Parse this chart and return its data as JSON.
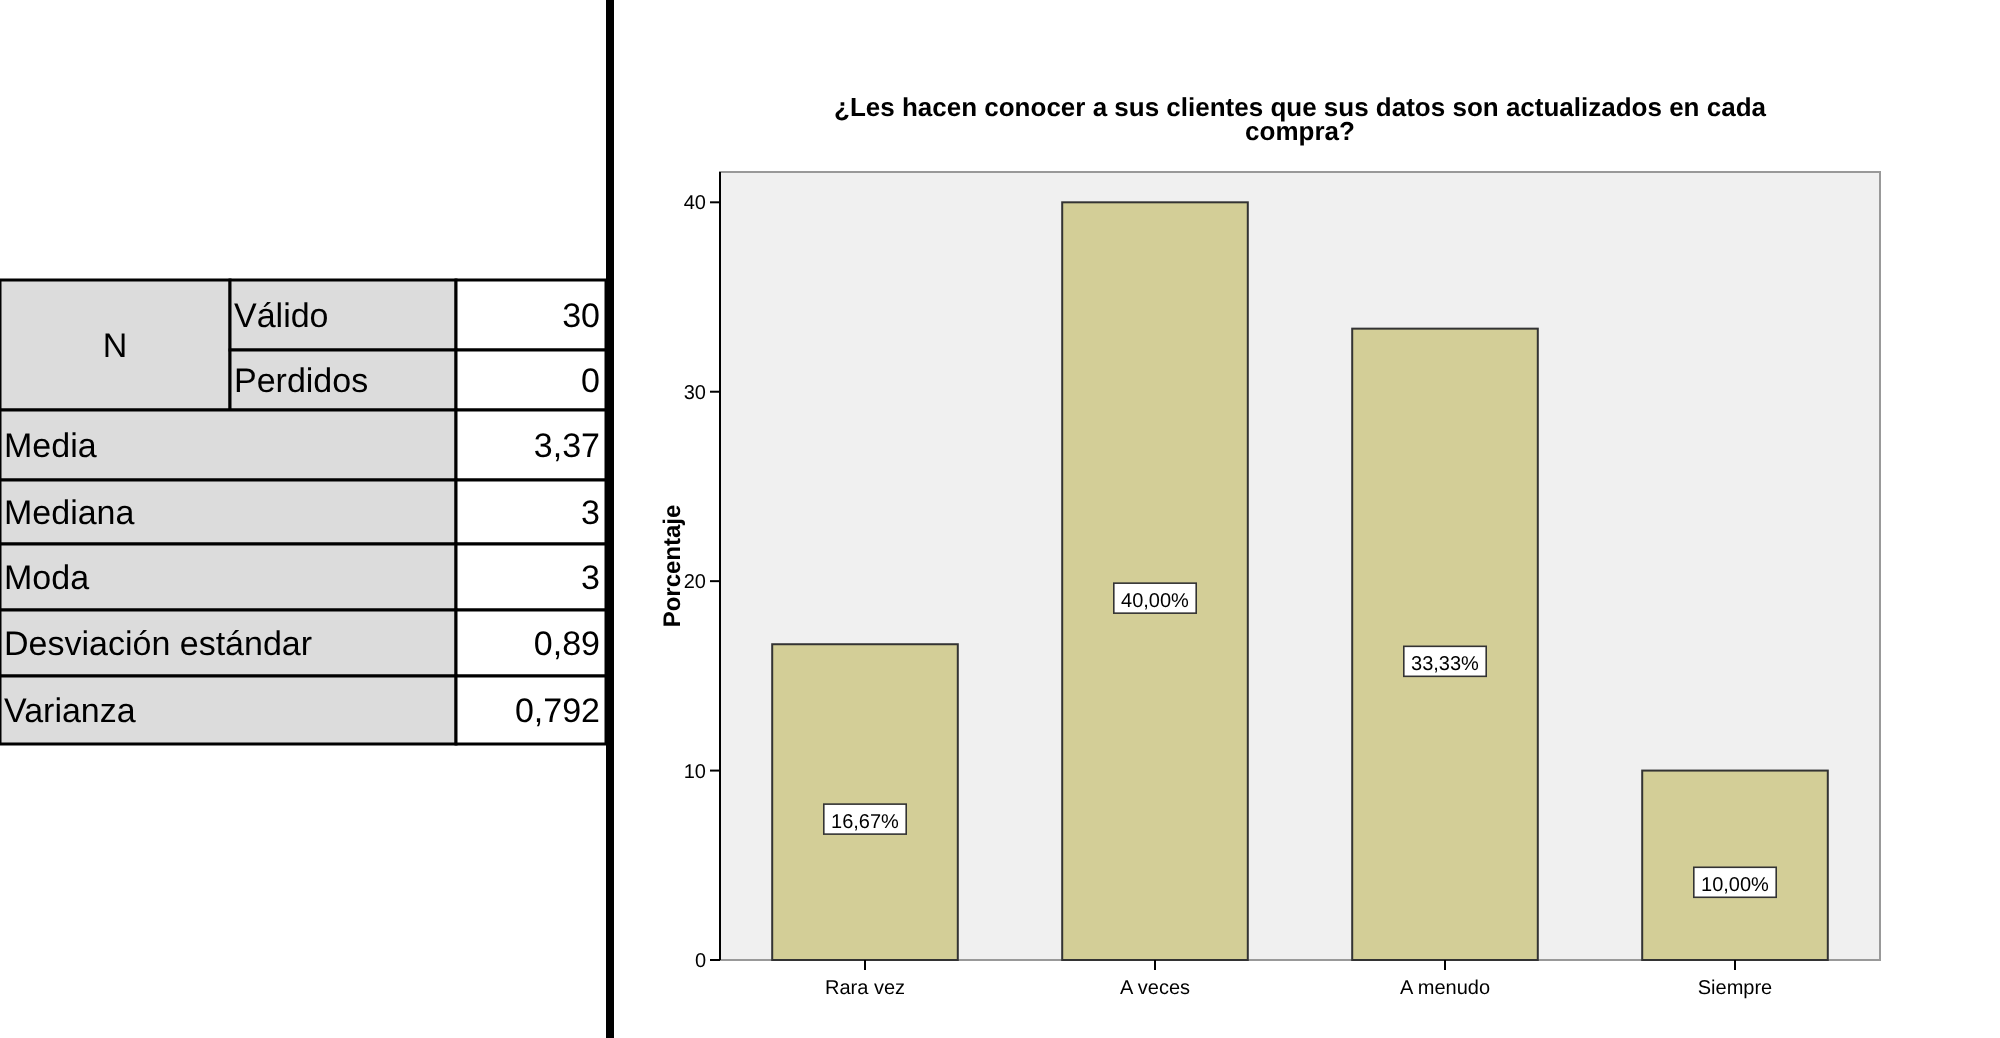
{
  "chart_data": [
    {
      "type": "other",
      "annotations": [
        "N",
        "Válido",
        "30",
        "Perdidos",
        "0",
        "Media",
        "3,37",
        "Mediana",
        "3",
        "Moda",
        "3",
        "Desviación estándar",
        "0,89",
        "Varianza",
        "0,792"
      ]
    },
    {
      "type": "bar",
      "title": "¿Les hacen conocer a sus clientes que sus datos son actualizados en cada compra?",
      "ylabel": "Porcentaje",
      "categories": [
        "Rara vez",
        "A veces",
        "A menudo",
        "Siempre"
      ],
      "values": [
        16.67,
        40,
        33.33,
        10
      ],
      "value_labels": [
        "16,67%",
        "40,00%",
        "33,33%",
        "10,00%"
      ],
      "color": "#d3ce97",
      "ylim": [
        0,
        41.6
      ],
      "yticks": [
        0,
        10,
        20,
        30,
        40
      ],
      "grid": false
    }
  ]
}
